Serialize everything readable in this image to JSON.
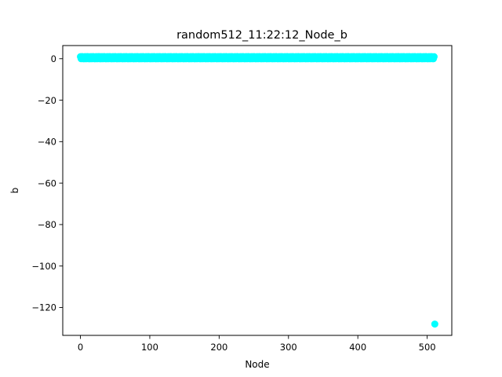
{
  "chart_data": {
    "type": "scatter",
    "title": "random512_11:22:12_Node_b",
    "xlabel": "Node",
    "ylabel": "b",
    "xlim": [
      -25.5,
      535.5
    ],
    "ylim": [
      -133.45,
      6.35
    ],
    "xticks": [
      0,
      100,
      200,
      300,
      400,
      500
    ],
    "yticks": [
      0,
      -20,
      -40,
      -60,
      -80,
      -100,
      -120
    ],
    "xtick_labels": [
      "0",
      "100",
      "200",
      "300",
      "400",
      "500"
    ],
    "ytick_labels": [
      "0",
      "−20",
      "−40",
      "−60",
      "−80",
      "−100",
      "−120"
    ],
    "grid": false,
    "legend": "none",
    "marker_color": "#00ffff",
    "series": [
      {
        "x_start": 0,
        "x_end": 510,
        "points_description": "one point per node index 0–510, values between 0 and 1",
        "value_pattern": [
          1,
          0,
          1,
          1,
          0,
          0,
          1,
          0
        ],
        "outlier": {
          "x": 511,
          "y": -128
        }
      }
    ]
  }
}
